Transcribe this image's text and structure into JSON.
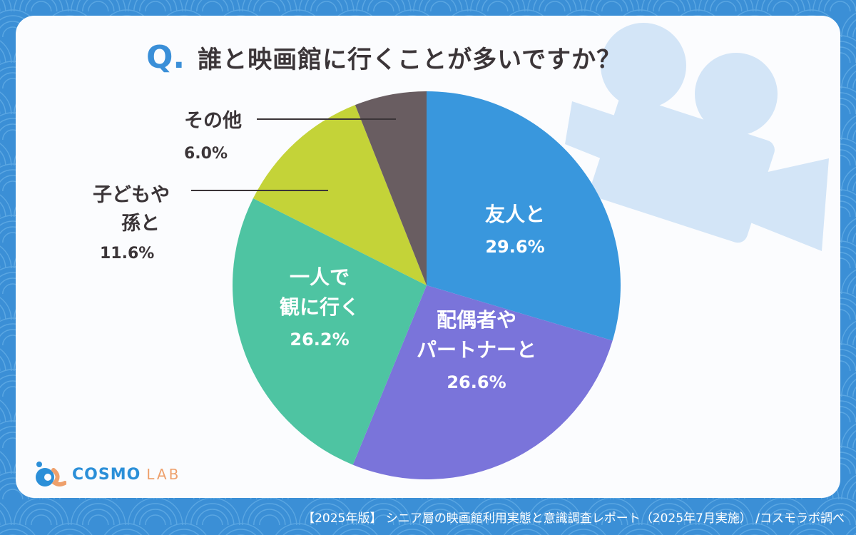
{
  "title": {
    "q_mark": "Q.",
    "text": "誰と映画館に行くことが多いですか？"
  },
  "chart_data": {
    "type": "pie",
    "title": "誰と映画館に行くことが多いですか？",
    "unit": "%",
    "start": "top, clockwise",
    "slices": [
      {
        "label": "友人と",
        "label_lines": [
          "友人と"
        ],
        "value": 29.6,
        "value_text": "29.6%",
        "color": "#3997dd",
        "label_position": "inside"
      },
      {
        "label": "配偶者やパートナーと",
        "label_lines": [
          "配偶者や",
          "パートナーと"
        ],
        "value": 26.6,
        "value_text": "26.6%",
        "color": "#7a74da",
        "label_position": "inside"
      },
      {
        "label": "一人で観に行く",
        "label_lines": [
          "一人で",
          "観に行く"
        ],
        "value": 26.2,
        "value_text": "26.2%",
        "color": "#4ec4a2",
        "label_position": "inside"
      },
      {
        "label": "子どもや孫と",
        "label_lines": [
          "子どもや",
          "孫と"
        ],
        "value": 11.6,
        "value_text": "11.6%",
        "color": "#c4d338",
        "label_position": "outside"
      },
      {
        "label": "その他",
        "label_lines": [
          "その他"
        ],
        "value": 6.0,
        "value_text": "6.0%",
        "color": "#695d61",
        "label_position": "outside"
      }
    ]
  },
  "logo": {
    "cosmo": "COSMO",
    "lab": "LAB"
  },
  "footer": "【2025年版】 シニア層の映画館利用実態と意識調査レポート（2025年7月実施） /コスモラボ調べ"
}
